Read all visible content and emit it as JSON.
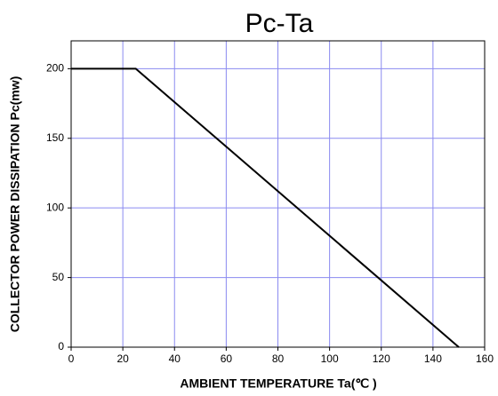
{
  "chart_data": {
    "type": "line",
    "title": "Pc-Ta",
    "x_label": "AMBIENT TEMPERATURE Ta(℃ )",
    "y_label": "COLLECTOR POWER DISSIPATION Pc(mw)",
    "x": [
      0,
      25,
      150
    ],
    "series": [
      {
        "name": "Pc",
        "color": "#000000",
        "values": [
          200,
          200,
          0
        ]
      }
    ],
    "xlim": [
      0,
      160
    ],
    "xticks": [
      0,
      20,
      40,
      60,
      80,
      100,
      120,
      140,
      160
    ],
    "ylim": [
      0,
      220
    ],
    "yticks": [
      0,
      50,
      100,
      150,
      200
    ],
    "grid": true,
    "grid_color": "#8a8af0"
  }
}
